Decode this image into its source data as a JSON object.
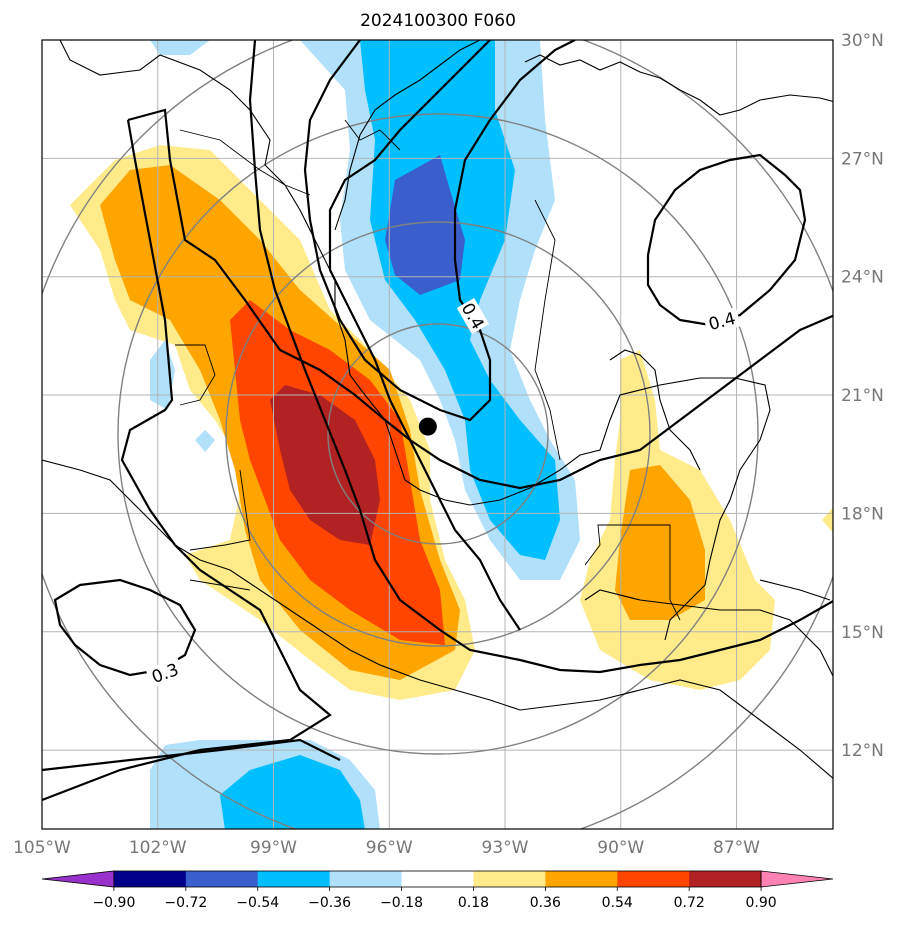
{
  "title": "2024100300 F060",
  "map": {
    "lon_range": [
      -105,
      -84.5
    ],
    "lat_range": [
      10,
      30
    ],
    "center_marker": {
      "lon": -95.0,
      "lat": 20.2
    },
    "lon_ticks": [
      {
        "lon": -105,
        "label": "105°W"
      },
      {
        "lon": -102,
        "label": "102°W"
      },
      {
        "lon": -99,
        "label": "99°W"
      },
      {
        "lon": -96,
        "label": "96°W"
      },
      {
        "lon": -93,
        "label": "93°W"
      },
      {
        "lon": -90,
        "label": "90°W"
      },
      {
        "lon": -87,
        "label": "87°W"
      }
    ],
    "lat_ticks": [
      {
        "lat": 30,
        "label": "30°N"
      },
      {
        "lat": 27,
        "label": "27°N"
      },
      {
        "lat": 24,
        "label": "24°N"
      },
      {
        "lat": 21,
        "label": "21°N"
      },
      {
        "lat": 18,
        "label": "18°N"
      },
      {
        "lat": 15,
        "label": "15°N"
      },
      {
        "lat": 12,
        "label": "12°N"
      }
    ],
    "contour_labels": [
      "0.4",
      "0.4",
      "0.3"
    ],
    "range_rings_deg": [
      3,
      6,
      9,
      12
    ]
  },
  "colorbar": {
    "levels": [
      "−0.90",
      "−0.72",
      "−0.54",
      "−0.36",
      "−0.18",
      "0.18",
      "0.36",
      "0.54",
      "0.72",
      "0.90"
    ],
    "colors": [
      "#9932cc",
      "#00008b",
      "#3a5fcd",
      "#00bfff",
      "#b0e0fa",
      "#ffffff",
      "#ffeb8a",
      "#ffa500",
      "#ff4500",
      "#b22222",
      "#ff82b4"
    ]
  }
}
